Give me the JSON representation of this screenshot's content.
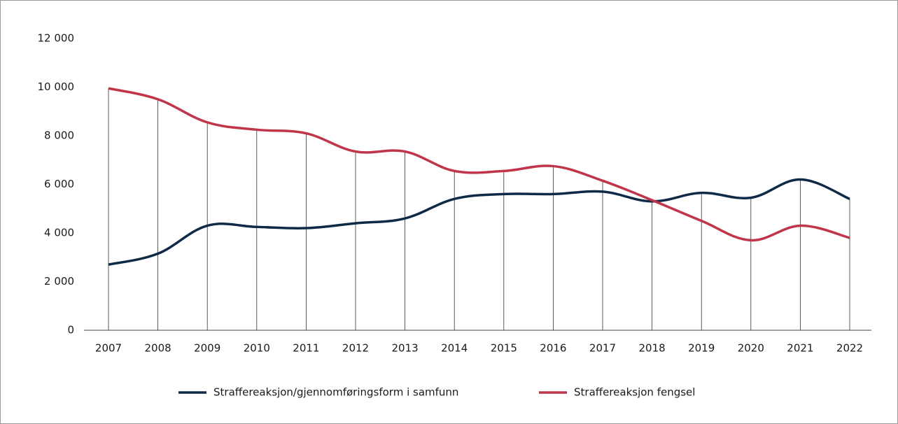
{
  "chart_data": {
    "type": "line",
    "categories": [
      "2007",
      "2008",
      "2009",
      "2010",
      "2011",
      "2012",
      "2013",
      "2014",
      "2015",
      "2016",
      "2017",
      "2018",
      "2019",
      "2020",
      "2021",
      "2022"
    ],
    "series": [
      {
        "name": "Straffereaksjon/gjennomføringsform i samfunn",
        "color": "#0e2a47",
        "values": [
          2700,
          3150,
          4300,
          4250,
          4200,
          4400,
          4600,
          5400,
          5600,
          5600,
          5700,
          5300,
          5650,
          5450,
          6200,
          5400
        ]
      },
      {
        "name": "Straffereaksjon fengsel",
        "color": "#c0354a",
        "values": [
          9950,
          9500,
          8550,
          8250,
          8100,
          7350,
          7350,
          6550,
          6550,
          6750,
          6150,
          5350,
          4500,
          3700,
          4300,
          3800
        ]
      }
    ],
    "ylim": [
      0,
      12000
    ],
    "yticks": [
      0,
      {
        "value": 2000,
        "label": "2 000"
      },
      {
        "value": 4000,
        "label": "4 000"
      },
      {
        "value": 6000,
        "label": "6 000"
      },
      {
        "value": 8000,
        "label": "8 000"
      },
      {
        "value": 10000,
        "label": "10 000"
      },
      {
        "value": 12000,
        "label": "12 000"
      }
    ],
    "legend": "bottom"
  }
}
